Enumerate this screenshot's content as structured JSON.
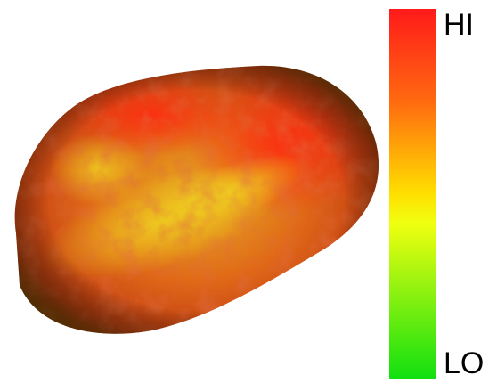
{
  "colorbar": {
    "high_label": "HI",
    "low_label": "LO"
  }
}
